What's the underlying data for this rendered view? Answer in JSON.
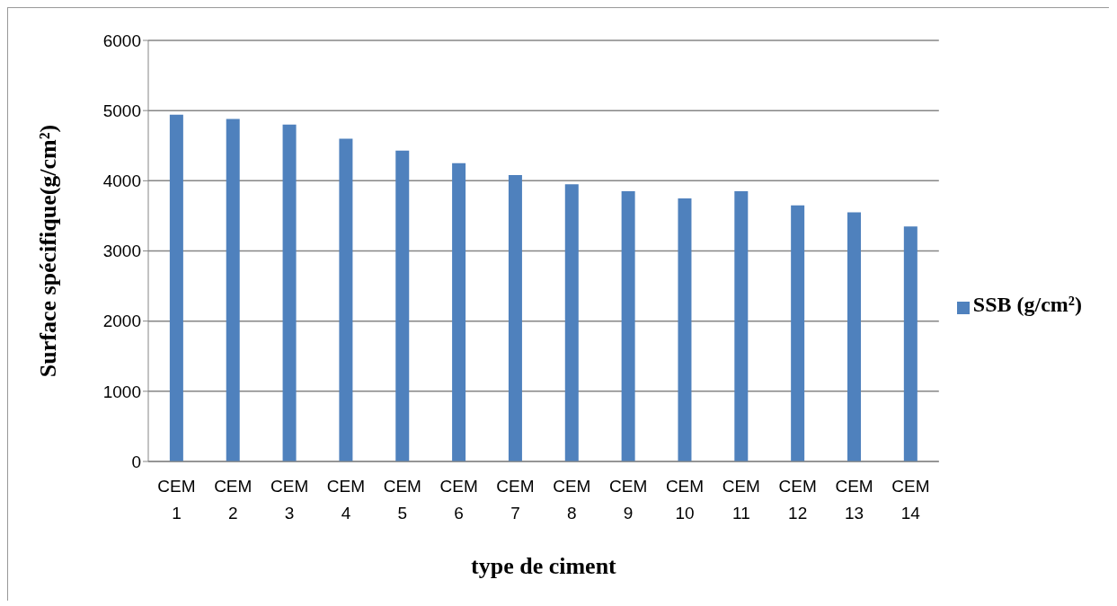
{
  "chart_data": {
    "type": "bar",
    "xlabel": "type de ciment",
    "ylabel": "Surface spécifique(g/cm²)",
    "categories": [
      "CEM 1",
      "CEM 2",
      "CEM 3",
      "CEM 4",
      "CEM 5",
      "CEM 6",
      "CEM 7",
      "CEM 8",
      "CEM 9",
      "CEM 10",
      "CEM 11",
      "CEM 12",
      "CEM 13",
      "CEM 14"
    ],
    "series": [
      {
        "name": "SSB (g/cm²)",
        "color": "#4f81bd",
        "values": [
          4940,
          4880,
          4800,
          4600,
          4430,
          4250,
          4080,
          3950,
          3850,
          3750,
          3850,
          3650,
          3550,
          3350
        ]
      }
    ],
    "ylim": [
      0,
      6000
    ],
    "yticks": [
      0,
      1000,
      2000,
      3000,
      4000,
      5000,
      6000
    ],
    "grid": "y",
    "legend": "right"
  }
}
